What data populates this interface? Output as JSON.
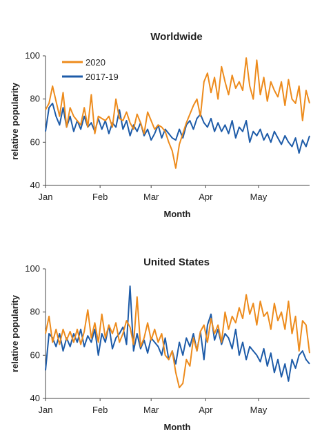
{
  "chart_data": [
    {
      "type": "line",
      "title": "Worldwide",
      "xlabel": "Month",
      "ylabel": "relative popularity",
      "ylim": [
        40,
        100
      ],
      "yticks": [
        40,
        60,
        80,
        100
      ],
      "xlim": [
        0,
        150
      ],
      "xticks": [
        {
          "label": "Jan",
          "x": 0
        },
        {
          "label": "Feb",
          "x": 31
        },
        {
          "label": "Mar",
          "x": 60
        },
        {
          "label": "Apr",
          "x": 91
        },
        {
          "label": "May",
          "x": 121
        }
      ],
      "grid": false,
      "legend": "top-left",
      "series": [
        {
          "name": "2020",
          "color": "#ED8B1C",
          "x": [
            0,
            2,
            4,
            6,
            8,
            10,
            12,
            14,
            16,
            18,
            20,
            22,
            24,
            26,
            28,
            30,
            32,
            34,
            36,
            38,
            40,
            42,
            44,
            46,
            48,
            50,
            52,
            54,
            56,
            58,
            60,
            62,
            64,
            66,
            68,
            70,
            72,
            74,
            76,
            78,
            80,
            82,
            84,
            86,
            88,
            90,
            92,
            94,
            96,
            98,
            100,
            102,
            104,
            106,
            108,
            110,
            112,
            114,
            116,
            118,
            120,
            122,
            124,
            126,
            128,
            130,
            132,
            134,
            136,
            138,
            140,
            142,
            144,
            146,
            148,
            150
          ],
          "y": [
            75,
            78,
            86,
            79,
            72,
            83,
            67,
            76,
            72,
            70,
            68,
            76,
            67,
            82,
            64,
            72,
            71,
            70,
            72,
            67,
            80,
            71,
            70,
            74,
            69,
            66,
            73,
            69,
            64,
            74,
            70,
            66,
            68,
            67,
            65,
            60,
            56,
            48,
            59,
            64,
            69,
            73,
            77,
            80,
            72,
            88,
            92,
            83,
            90,
            80,
            95,
            88,
            82,
            91,
            85,
            88,
            84,
            99,
            86,
            80,
            98,
            82,
            90,
            79,
            88,
            84,
            81,
            88,
            77,
            89,
            80,
            78,
            86,
            70,
            84,
            78
          ]
        },
        {
          "name": "2017-19",
          "color": "#1D5BA8",
          "x": [
            0,
            2,
            4,
            6,
            8,
            10,
            12,
            14,
            16,
            18,
            20,
            22,
            24,
            26,
            28,
            30,
            32,
            34,
            36,
            38,
            40,
            42,
            44,
            46,
            48,
            50,
            52,
            54,
            56,
            58,
            60,
            62,
            64,
            66,
            68,
            70,
            72,
            74,
            76,
            78,
            80,
            82,
            84,
            86,
            88,
            90,
            92,
            94,
            96,
            98,
            100,
            102,
            104,
            106,
            108,
            110,
            112,
            114,
            116,
            118,
            120,
            122,
            124,
            126,
            128,
            130,
            132,
            134,
            136,
            138,
            140,
            142,
            144,
            146,
            148,
            150
          ],
          "y": [
            65,
            76,
            78,
            72,
            68,
            76,
            67,
            72,
            65,
            70,
            66,
            72,
            67,
            69,
            65,
            71,
            66,
            70,
            64,
            69,
            67,
            75,
            66,
            70,
            63,
            68,
            65,
            69,
            63,
            66,
            61,
            64,
            68,
            62,
            66,
            64,
            62,
            61,
            66,
            62,
            68,
            70,
            66,
            71,
            73,
            69,
            67,
            71,
            65,
            69,
            65,
            68,
            64,
            70,
            62,
            67,
            65,
            70,
            60,
            65,
            63,
            66,
            61,
            64,
            60,
            65,
            62,
            59,
            63,
            60,
            58,
            62,
            55,
            61,
            58,
            63
          ]
        }
      ]
    },
    {
      "type": "line",
      "title": "United States",
      "xlabel": "Month",
      "ylabel": "relative popularity",
      "ylim": [
        40,
        100
      ],
      "yticks": [
        40,
        60,
        80,
        100
      ],
      "xlim": [
        0,
        150
      ],
      "xticks": [
        {
          "label": "Jan",
          "x": 0
        },
        {
          "label": "Feb",
          "x": 31
        },
        {
          "label": "Mar",
          "x": 60
        },
        {
          "label": "Apr",
          "x": 91
        },
        {
          "label": "May",
          "x": 121
        }
      ],
      "grid": false,
      "legend": "none",
      "series": [
        {
          "name": "2020",
          "color": "#ED8B1C",
          "x": [
            0,
            2,
            4,
            6,
            8,
            10,
            12,
            14,
            16,
            18,
            20,
            22,
            24,
            26,
            28,
            30,
            32,
            34,
            36,
            38,
            40,
            42,
            44,
            46,
            48,
            50,
            52,
            54,
            56,
            58,
            60,
            62,
            64,
            66,
            68,
            70,
            72,
            74,
            76,
            78,
            80,
            82,
            84,
            86,
            88,
            90,
            92,
            94,
            96,
            98,
            100,
            102,
            104,
            106,
            108,
            110,
            112,
            114,
            116,
            118,
            120,
            122,
            124,
            126,
            128,
            130,
            132,
            134,
            136,
            138,
            140,
            142,
            144,
            146,
            148,
            150
          ],
          "y": [
            70,
            78,
            66,
            72,
            65,
            72,
            67,
            71,
            66,
            72,
            65,
            71,
            81,
            68,
            75,
            66,
            79,
            68,
            74,
            70,
            75,
            66,
            70,
            76,
            73,
            65,
            87,
            64,
            68,
            75,
            67,
            72,
            66,
            70,
            60,
            58,
            62,
            52,
            45,
            47,
            58,
            55,
            68,
            62,
            71,
            74,
            66,
            77,
            70,
            74,
            66,
            80,
            72,
            78,
            75,
            82,
            77,
            88,
            79,
            84,
            74,
            85,
            78,
            80,
            72,
            84,
            76,
            80,
            72,
            85,
            70,
            78,
            62,
            76,
            74,
            61
          ]
        },
        {
          "name": "2017-19",
          "color": "#1D5BA8",
          "x": [
            0,
            2,
            4,
            6,
            8,
            10,
            12,
            14,
            16,
            18,
            20,
            22,
            24,
            26,
            28,
            30,
            32,
            34,
            36,
            38,
            40,
            42,
            44,
            46,
            48,
            50,
            52,
            54,
            56,
            58,
            60,
            62,
            64,
            66,
            68,
            70,
            72,
            74,
            76,
            78,
            80,
            82,
            84,
            86,
            88,
            90,
            92,
            94,
            96,
            98,
            100,
            102,
            104,
            106,
            108,
            110,
            112,
            114,
            116,
            118,
            120,
            122,
            124,
            126,
            128,
            130,
            132,
            134,
            136,
            138,
            140,
            142,
            144,
            146,
            148,
            150
          ],
          "y": [
            53,
            70,
            68,
            64,
            70,
            62,
            68,
            64,
            70,
            66,
            72,
            64,
            69,
            66,
            72,
            60,
            70,
            66,
            74,
            63,
            68,
            70,
            73,
            65,
            92,
            62,
            70,
            63,
            67,
            61,
            68,
            66,
            64,
            60,
            68,
            58,
            62,
            56,
            66,
            60,
            68,
            64,
            70,
            62,
            71,
            58,
            74,
            79,
            67,
            72,
            65,
            70,
            68,
            63,
            72,
            60,
            66,
            58,
            64,
            62,
            60,
            57,
            63,
            55,
            61,
            52,
            58,
            50,
            56,
            48,
            58,
            54,
            60,
            62,
            58,
            56
          ]
        }
      ]
    }
  ]
}
